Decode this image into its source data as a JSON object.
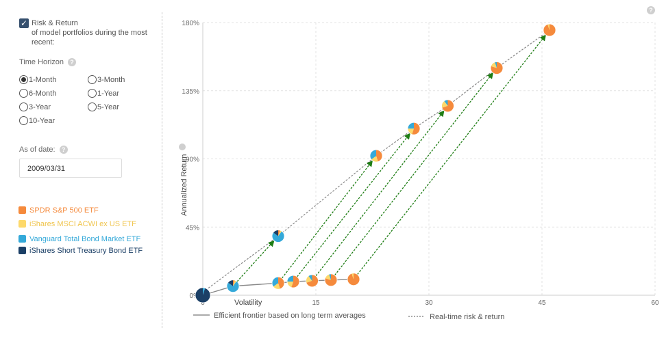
{
  "controls": {
    "checkbox": {
      "checked": true,
      "label_line1": "Risk & Return",
      "label_rest": "of model portfolios during the most recent:"
    },
    "time_horizon_label": "Time Horizon",
    "help_glyph": "?",
    "horizons": [
      {
        "label": "1-Month",
        "selected": true
      },
      {
        "label": "3-Month",
        "selected": false
      },
      {
        "label": "6-Month",
        "selected": false
      },
      {
        "label": "1-Year",
        "selected": false
      },
      {
        "label": "3-Year",
        "selected": false
      },
      {
        "label": "5-Year",
        "selected": false
      },
      {
        "label": "10-Year",
        "selected": false
      }
    ],
    "as_of_label": "As of date:",
    "as_of_value": "2009/03/31"
  },
  "legend": [
    {
      "name": "SPDR S&P 500 ETF",
      "color": "#f58a3c"
    },
    {
      "name": "iShares MSCI ACWI ex US ETF",
      "color": "#fdd96b"
    },
    {
      "name": "Vanguard Total Bond Market ETF",
      "color": "#34a9d9"
    },
    {
      "name": "iShares Short Treasury Bond ETF",
      "color": "#1b3f66"
    }
  ],
  "chart_data": {
    "type": "scatter",
    "xlabel": "Volatility",
    "ylabel": "Annualized Return",
    "xlim": [
      0,
      60
    ],
    "ylim": [
      0,
      180
    ],
    "x_ticks": [
      "0",
      "15",
      "30",
      "45",
      "60"
    ],
    "y_ticks": [
      "0%",
      "45%",
      "90%",
      "135%",
      "180%"
    ],
    "grid": true,
    "series": [
      {
        "name": "Efficient frontier based on long term averages",
        "style": "solid",
        "points": [
          [
            0,
            0
          ],
          [
            4,
            6
          ],
          [
            10,
            8
          ],
          [
            12,
            9
          ],
          [
            14.5,
            9.5
          ],
          [
            17,
            10
          ],
          [
            20,
            10.5
          ]
        ]
      },
      {
        "name": "Real-time risk & return",
        "style": "dotted",
        "points": [
          [
            0,
            2
          ],
          [
            10,
            39
          ],
          [
            23,
            92
          ],
          [
            28,
            110
          ],
          [
            32.5,
            125
          ],
          [
            39,
            150
          ],
          [
            46,
            175
          ]
        ]
      }
    ],
    "frontier_legend": "Efficient frontier based on long term averages",
    "realtime_legend": "Real-time risk & return"
  }
}
